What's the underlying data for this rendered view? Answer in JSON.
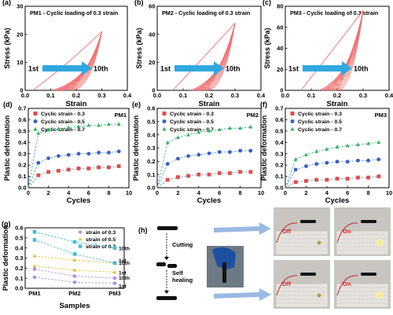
{
  "colors": {
    "red": "#e84a4a",
    "loop": "#f07070",
    "blue": "#3a5fc8",
    "green": "#2fb94a",
    "arrow": "#2fa8e0",
    "g_purple": "#b48ee0",
    "g_yellow": "#e0c23a",
    "g_teal": "#3ac0d8",
    "dash": "#4fa0d0",
    "axis": "#000000"
  },
  "chart_data": [
    {
      "id": "a",
      "type": "line",
      "panel_label": "(a)",
      "title": "PM1 - Cyclic loading of 0.3 strain",
      "xlabel": "Strain",
      "ylabel": "Stress (kPa)",
      "xlim": [
        0,
        0.4
      ],
      "ylim": [
        0,
        30
      ],
      "xticks": [
        "0.0",
        "0.1",
        "0.2",
        "0.3",
        "0.4"
      ],
      "yticks": [
        "0",
        "10",
        "20",
        "30"
      ],
      "peak": [
        0.3,
        21
      ],
      "first_cycle_start": 0.03,
      "tenth_cycle_start": 0.18,
      "annotations": [
        "1st",
        "10th"
      ]
    },
    {
      "id": "b",
      "type": "line",
      "panel_label": "(b)",
      "title": "PM2 - Cyclic loading of 0.3 strain",
      "xlabel": "Strain",
      "ylabel": "Stress (kPa)",
      "xlim": [
        0,
        0.4
      ],
      "ylim": [
        0,
        60
      ],
      "xticks": [
        "0.0",
        "0.1",
        "0.2",
        "0.3",
        "0.4"
      ],
      "yticks": [
        "0",
        "20",
        "40",
        "60"
      ],
      "peak": [
        0.3,
        48
      ],
      "first_cycle_start": 0.06,
      "tenth_cycle_start": 0.19,
      "annotations": [
        "1st",
        "10th"
      ]
    },
    {
      "id": "c",
      "type": "line",
      "panel_label": "(c)",
      "title": "PM3 - Cyclic loading of 0.3 strain",
      "xlabel": "Strain",
      "ylabel": "Stress (kPa)",
      "xlim": [
        0,
        0.4
      ],
      "ylim": [
        0,
        80
      ],
      "xticks": [
        "0.0",
        "0.1",
        "0.2",
        "0.3",
        "0.4"
      ],
      "yticks": [
        "0",
        "20",
        "40",
        "60",
        "80"
      ],
      "peak": [
        0.3,
        76
      ],
      "first_cycle_start": 0.06,
      "tenth_cycle_start": 0.2,
      "annotations": [
        "1st",
        "10th"
      ]
    },
    {
      "id": "d",
      "type": "scatter",
      "panel_label": "(d)",
      "corner_label": "PM1",
      "xlabel": "Cycles",
      "ylabel": "Plastic deformation",
      "xlim": [
        0,
        10
      ],
      "ylim": [
        0,
        0.7
      ],
      "xticks": [
        "0",
        "2",
        "4",
        "6",
        "8",
        "10"
      ],
      "yticks": [
        "0.0",
        "0.1",
        "0.2",
        "0.3",
        "0.4",
        "0.5",
        "0.6",
        "0.7"
      ],
      "x": [
        1,
        2,
        3,
        4,
        5,
        6,
        7,
        8,
        9
      ],
      "series": [
        {
          "name": "Cyclic strain - 0.3",
          "marker": "square",
          "color": "#e84a4a",
          "values": [
            0.11,
            0.14,
            0.15,
            0.16,
            0.17,
            0.17,
            0.18,
            0.18,
            0.19
          ]
        },
        {
          "name": "Cyclic strain - 0.5",
          "marker": "circle",
          "color": "#3a5fc8",
          "values": [
            0.22,
            0.26,
            0.28,
            0.29,
            0.3,
            0.3,
            0.31,
            0.31,
            0.32
          ]
        },
        {
          "name": "Cyclic strain - 0.7",
          "marker": "triangle",
          "color": "#2fb94a",
          "values": [
            0.48,
            0.51,
            0.52,
            0.53,
            0.54,
            0.55,
            0.55,
            0.56,
            0.56
          ]
        }
      ]
    },
    {
      "id": "e",
      "type": "scatter",
      "panel_label": "(e)",
      "corner_label": "PM2",
      "xlabel": "Cycles",
      "ylabel": "Plastic deformation",
      "xlim": [
        0,
        10
      ],
      "ylim": [
        0,
        0.6
      ],
      "xticks": [
        "0",
        "2",
        "4",
        "6",
        "8",
        "10"
      ],
      "yticks": [
        "0.0",
        "0.1",
        "0.2",
        "0.3",
        "0.4",
        "0.5",
        "0.6"
      ],
      "x": [
        1,
        2,
        3,
        4,
        5,
        6,
        7,
        8,
        9
      ],
      "series": [
        {
          "name": "Cyclic strain - 0.3",
          "marker": "square",
          "color": "#e84a4a",
          "values": [
            0.06,
            0.08,
            0.09,
            0.1,
            0.1,
            0.11,
            0.11,
            0.12,
            0.12
          ]
        },
        {
          "name": "Cyclic strain - 0.5",
          "marker": "circle",
          "color": "#3a5fc8",
          "values": [
            0.18,
            0.22,
            0.24,
            0.25,
            0.26,
            0.27,
            0.27,
            0.28,
            0.28
          ]
        },
        {
          "name": "Cyclic strain - 0.7",
          "marker": "triangle",
          "color": "#2fb94a",
          "values": [
            0.34,
            0.38,
            0.4,
            0.42,
            0.43,
            0.44,
            0.45,
            0.45,
            0.46
          ]
        }
      ]
    },
    {
      "id": "f",
      "type": "scatter",
      "panel_label": "(f)",
      "corner_label": "PM3",
      "xlabel": "Cycles",
      "ylabel": "Plastic deformation",
      "xlim": [
        0,
        10
      ],
      "ylim": [
        0,
        0.7
      ],
      "xticks": [
        "0",
        "2",
        "4",
        "6",
        "8",
        "10"
      ],
      "yticks": [
        "0.0",
        "0.1",
        "0.2",
        "0.3",
        "0.4",
        "0.5",
        "0.6",
        "0.7"
      ],
      "x": [
        1,
        2,
        3,
        4,
        5,
        6,
        7,
        8,
        9
      ],
      "series": [
        {
          "name": "Cyclic strain - 0.3",
          "marker": "square",
          "color": "#e84a4a",
          "values": [
            0.05,
            0.06,
            0.07,
            0.07,
            0.08,
            0.08,
            0.09,
            0.09,
            0.1
          ]
        },
        {
          "name": "Cyclic strain - 0.5",
          "marker": "circle",
          "color": "#3a5fc8",
          "values": [
            0.16,
            0.19,
            0.21,
            0.22,
            0.23,
            0.23,
            0.24,
            0.24,
            0.25
          ]
        },
        {
          "name": "Cyclic strain - 0.7",
          "marker": "triangle",
          "color": "#2fb94a",
          "values": [
            0.25,
            0.29,
            0.32,
            0.34,
            0.36,
            0.37,
            0.38,
            0.39,
            0.4
          ]
        }
      ]
    },
    {
      "id": "g",
      "type": "scatter",
      "panel_label": "(g)",
      "xlabel": "Samples",
      "ylabel": "Plastic deformation",
      "categories": [
        "PM1",
        "PM2",
        "PM3"
      ],
      "ylim": [
        0.0,
        0.6
      ],
      "yticks": [
        "0.0",
        "0.1",
        "0.2",
        "0.3",
        "0.4",
        "0.5",
        "0.6"
      ],
      "series": [
        {
          "name": "strain of 0.3",
          "marker": "circle",
          "color": "#b48ee0",
          "first": [
            0.11,
            0.06,
            0.05
          ],
          "tenth": [
            0.19,
            0.12,
            0.1
          ]
        },
        {
          "name": "strain of 0.5",
          "marker": "triangle",
          "color": "#e0c23a",
          "first": [
            0.22,
            0.18,
            0.16
          ],
          "tenth": [
            0.32,
            0.28,
            0.25
          ]
        },
        {
          "name": "strain of 0.7",
          "marker": "square",
          "color": "#3ac0d8",
          "first": [
            0.48,
            0.34,
            0.25
          ],
          "tenth": [
            0.56,
            0.46,
            0.4
          ]
        }
      ],
      "annotations": [
        "10th",
        "1st",
        "10th",
        "1st",
        "10th",
        "1st"
      ]
    }
  ],
  "panel_h": {
    "label": "(h)",
    "cutting": "Cutting",
    "self": "Self",
    "healing": "healing",
    "photos": [
      {
        "status": "Off"
      },
      {
        "status": "On"
      },
      {
        "status": "Off"
      },
      {
        "status": "On"
      }
    ]
  }
}
